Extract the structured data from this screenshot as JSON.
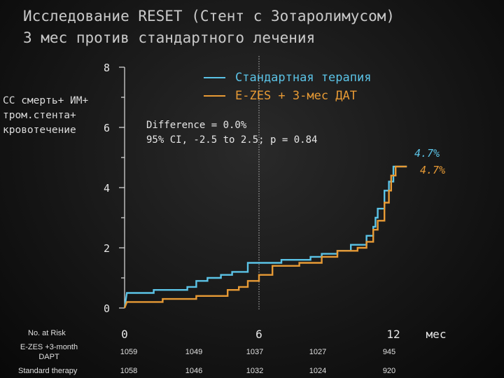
{
  "title_lines": [
    "Исследование RESET (Стент с Зотаролимусом)",
    "3 мес против стандартного лечения"
  ],
  "chart_data": {
    "type": "line",
    "ylabel_lines": [
      "СС смерть+ ИМ+",
      "тром.стента+",
      "кровотечение"
    ],
    "xunit": "мес",
    "xlim": [
      0,
      12.6
    ],
    "ylim": [
      0,
      8
    ],
    "xticks": [
      0,
      6,
      12
    ],
    "yticks": [
      0,
      2,
      4,
      6,
      8
    ],
    "reference_line_x": 6,
    "legend_position": "top-right",
    "series": [
      {
        "name": "Стандартная терапия",
        "color": "#5bc3e6",
        "final_label": "4.7%",
        "points": [
          [
            0,
            0
          ],
          [
            0.1,
            0.5
          ],
          [
            1.3,
            0.5
          ],
          [
            1.3,
            0.6
          ],
          [
            2.8,
            0.6
          ],
          [
            2.8,
            0.7
          ],
          [
            3.2,
            0.7
          ],
          [
            3.2,
            0.9
          ],
          [
            3.7,
            0.9
          ],
          [
            3.7,
            1.0
          ],
          [
            4.3,
            1.0
          ],
          [
            4.3,
            1.1
          ],
          [
            4.8,
            1.1
          ],
          [
            4.8,
            1.2
          ],
          [
            5.5,
            1.2
          ],
          [
            5.5,
            1.5
          ],
          [
            7.0,
            1.5
          ],
          [
            7.0,
            1.6
          ],
          [
            8.3,
            1.6
          ],
          [
            8.3,
            1.7
          ],
          [
            8.8,
            1.7
          ],
          [
            8.8,
            1.8
          ],
          [
            9.5,
            1.8
          ],
          [
            9.5,
            1.9
          ],
          [
            10.1,
            1.9
          ],
          [
            10.1,
            2.1
          ],
          [
            10.8,
            2.1
          ],
          [
            10.8,
            2.4
          ],
          [
            11.1,
            2.4
          ],
          [
            11.1,
            2.7
          ],
          [
            11.2,
            2.7
          ],
          [
            11.2,
            3.0
          ],
          [
            11.3,
            3.0
          ],
          [
            11.3,
            3.3
          ],
          [
            11.6,
            3.3
          ],
          [
            11.6,
            3.9
          ],
          [
            11.8,
            3.9
          ],
          [
            11.8,
            4.2
          ],
          [
            12.0,
            4.2
          ],
          [
            12.0,
            4.7
          ],
          [
            12.6,
            4.7
          ]
        ]
      },
      {
        "name": "E-ZES + 3-мес ДАТ",
        "color": "#e79a35",
        "final_label": "4.7%",
        "points": [
          [
            0,
            0
          ],
          [
            0.1,
            0.2
          ],
          [
            1.7,
            0.2
          ],
          [
            1.7,
            0.3
          ],
          [
            3.2,
            0.3
          ],
          [
            3.2,
            0.4
          ],
          [
            4.6,
            0.4
          ],
          [
            4.6,
            0.6
          ],
          [
            5.1,
            0.6
          ],
          [
            5.1,
            0.7
          ],
          [
            5.5,
            0.7
          ],
          [
            5.5,
            0.9
          ],
          [
            6.0,
            0.9
          ],
          [
            6.0,
            1.1
          ],
          [
            6.6,
            1.1
          ],
          [
            6.6,
            1.4
          ],
          [
            7.8,
            1.4
          ],
          [
            7.8,
            1.5
          ],
          [
            8.8,
            1.5
          ],
          [
            8.8,
            1.7
          ],
          [
            9.5,
            1.7
          ],
          [
            9.5,
            1.9
          ],
          [
            10.4,
            1.9
          ],
          [
            10.4,
            2.0
          ],
          [
            10.8,
            2.0
          ],
          [
            10.8,
            2.2
          ],
          [
            11.1,
            2.2
          ],
          [
            11.1,
            2.6
          ],
          [
            11.3,
            2.6
          ],
          [
            11.3,
            2.9
          ],
          [
            11.6,
            2.9
          ],
          [
            11.6,
            3.5
          ],
          [
            11.8,
            3.5
          ],
          [
            11.8,
            3.9
          ],
          [
            11.9,
            3.9
          ],
          [
            11.9,
            4.4
          ],
          [
            12.1,
            4.4
          ],
          [
            12.1,
            4.7
          ],
          [
            12.6,
            4.7
          ]
        ]
      }
    ],
    "annotation_lines": [
      "Difference = 0.0%",
      "95% CI, -2.5 to 2.5; p = 0.84"
    ]
  },
  "risk_table": {
    "header": "No. at Risk",
    "rows": [
      {
        "label": "E-ZES +3-month DAPT",
        "values": [
          "1059",
          "1049",
          "1037",
          "1027",
          "945"
        ]
      },
      {
        "label": "Standard therapy",
        "values": [
          "1058",
          "1046",
          "1032",
          "1024",
          "920"
        ]
      }
    ]
  }
}
